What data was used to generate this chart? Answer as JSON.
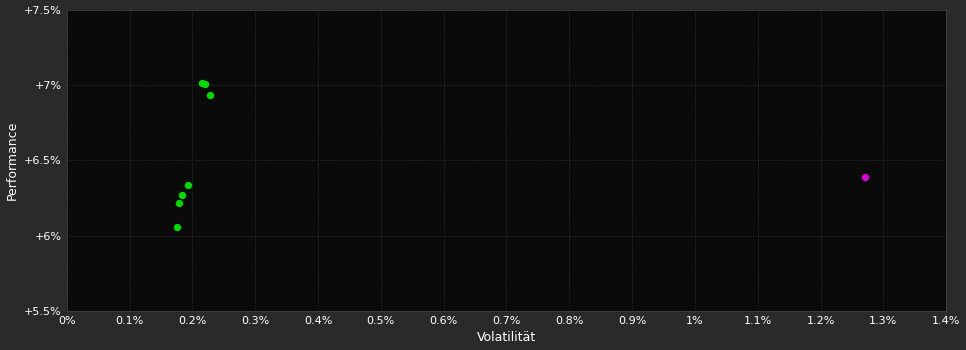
{
  "background_color": "#2a2a2a",
  "plot_bg_color": "#0a0a0a",
  "xlabel": "Volatilität",
  "ylabel": "Performance",
  "xlim": [
    0.0,
    0.014
  ],
  "ylim": [
    0.055,
    0.075
  ],
  "xticks": [
    0.0,
    0.001,
    0.002,
    0.003,
    0.004,
    0.005,
    0.006,
    0.007,
    0.008,
    0.009,
    0.01,
    0.011,
    0.012,
    0.013,
    0.014
  ],
  "xtick_labels": [
    "0%",
    "0.1%",
    "0.2%",
    "0.3%",
    "0.4%",
    "0.5%",
    "0.6%",
    "0.7%",
    "0.8%",
    "0.9%",
    "1%",
    "1.1%",
    "1.2%",
    "1.3%",
    "1.4%"
  ],
  "yticks": [
    0.055,
    0.06,
    0.065,
    0.07,
    0.075
  ],
  "ytick_labels": [
    "+5.5%",
    "+6%",
    "+6.5%",
    "+7%",
    "+7.5%"
  ],
  "green_points": [
    [
      0.00215,
      0.07015
    ],
    [
      0.0022,
      0.07005
    ],
    [
      0.00228,
      0.0693
    ],
    [
      0.00193,
      0.06335
    ],
    [
      0.00183,
      0.0627
    ],
    [
      0.00178,
      0.06215
    ],
    [
      0.00175,
      0.0606
    ]
  ],
  "magenta_points": [
    [
      0.0127,
      0.0639
    ]
  ],
  "green_color": "#00dd00",
  "magenta_color": "#dd00dd",
  "tick_label_color": "#ffffff",
  "axis_label_color": "#ffffff",
  "grid_color": "#333333",
  "marker_size": 28
}
